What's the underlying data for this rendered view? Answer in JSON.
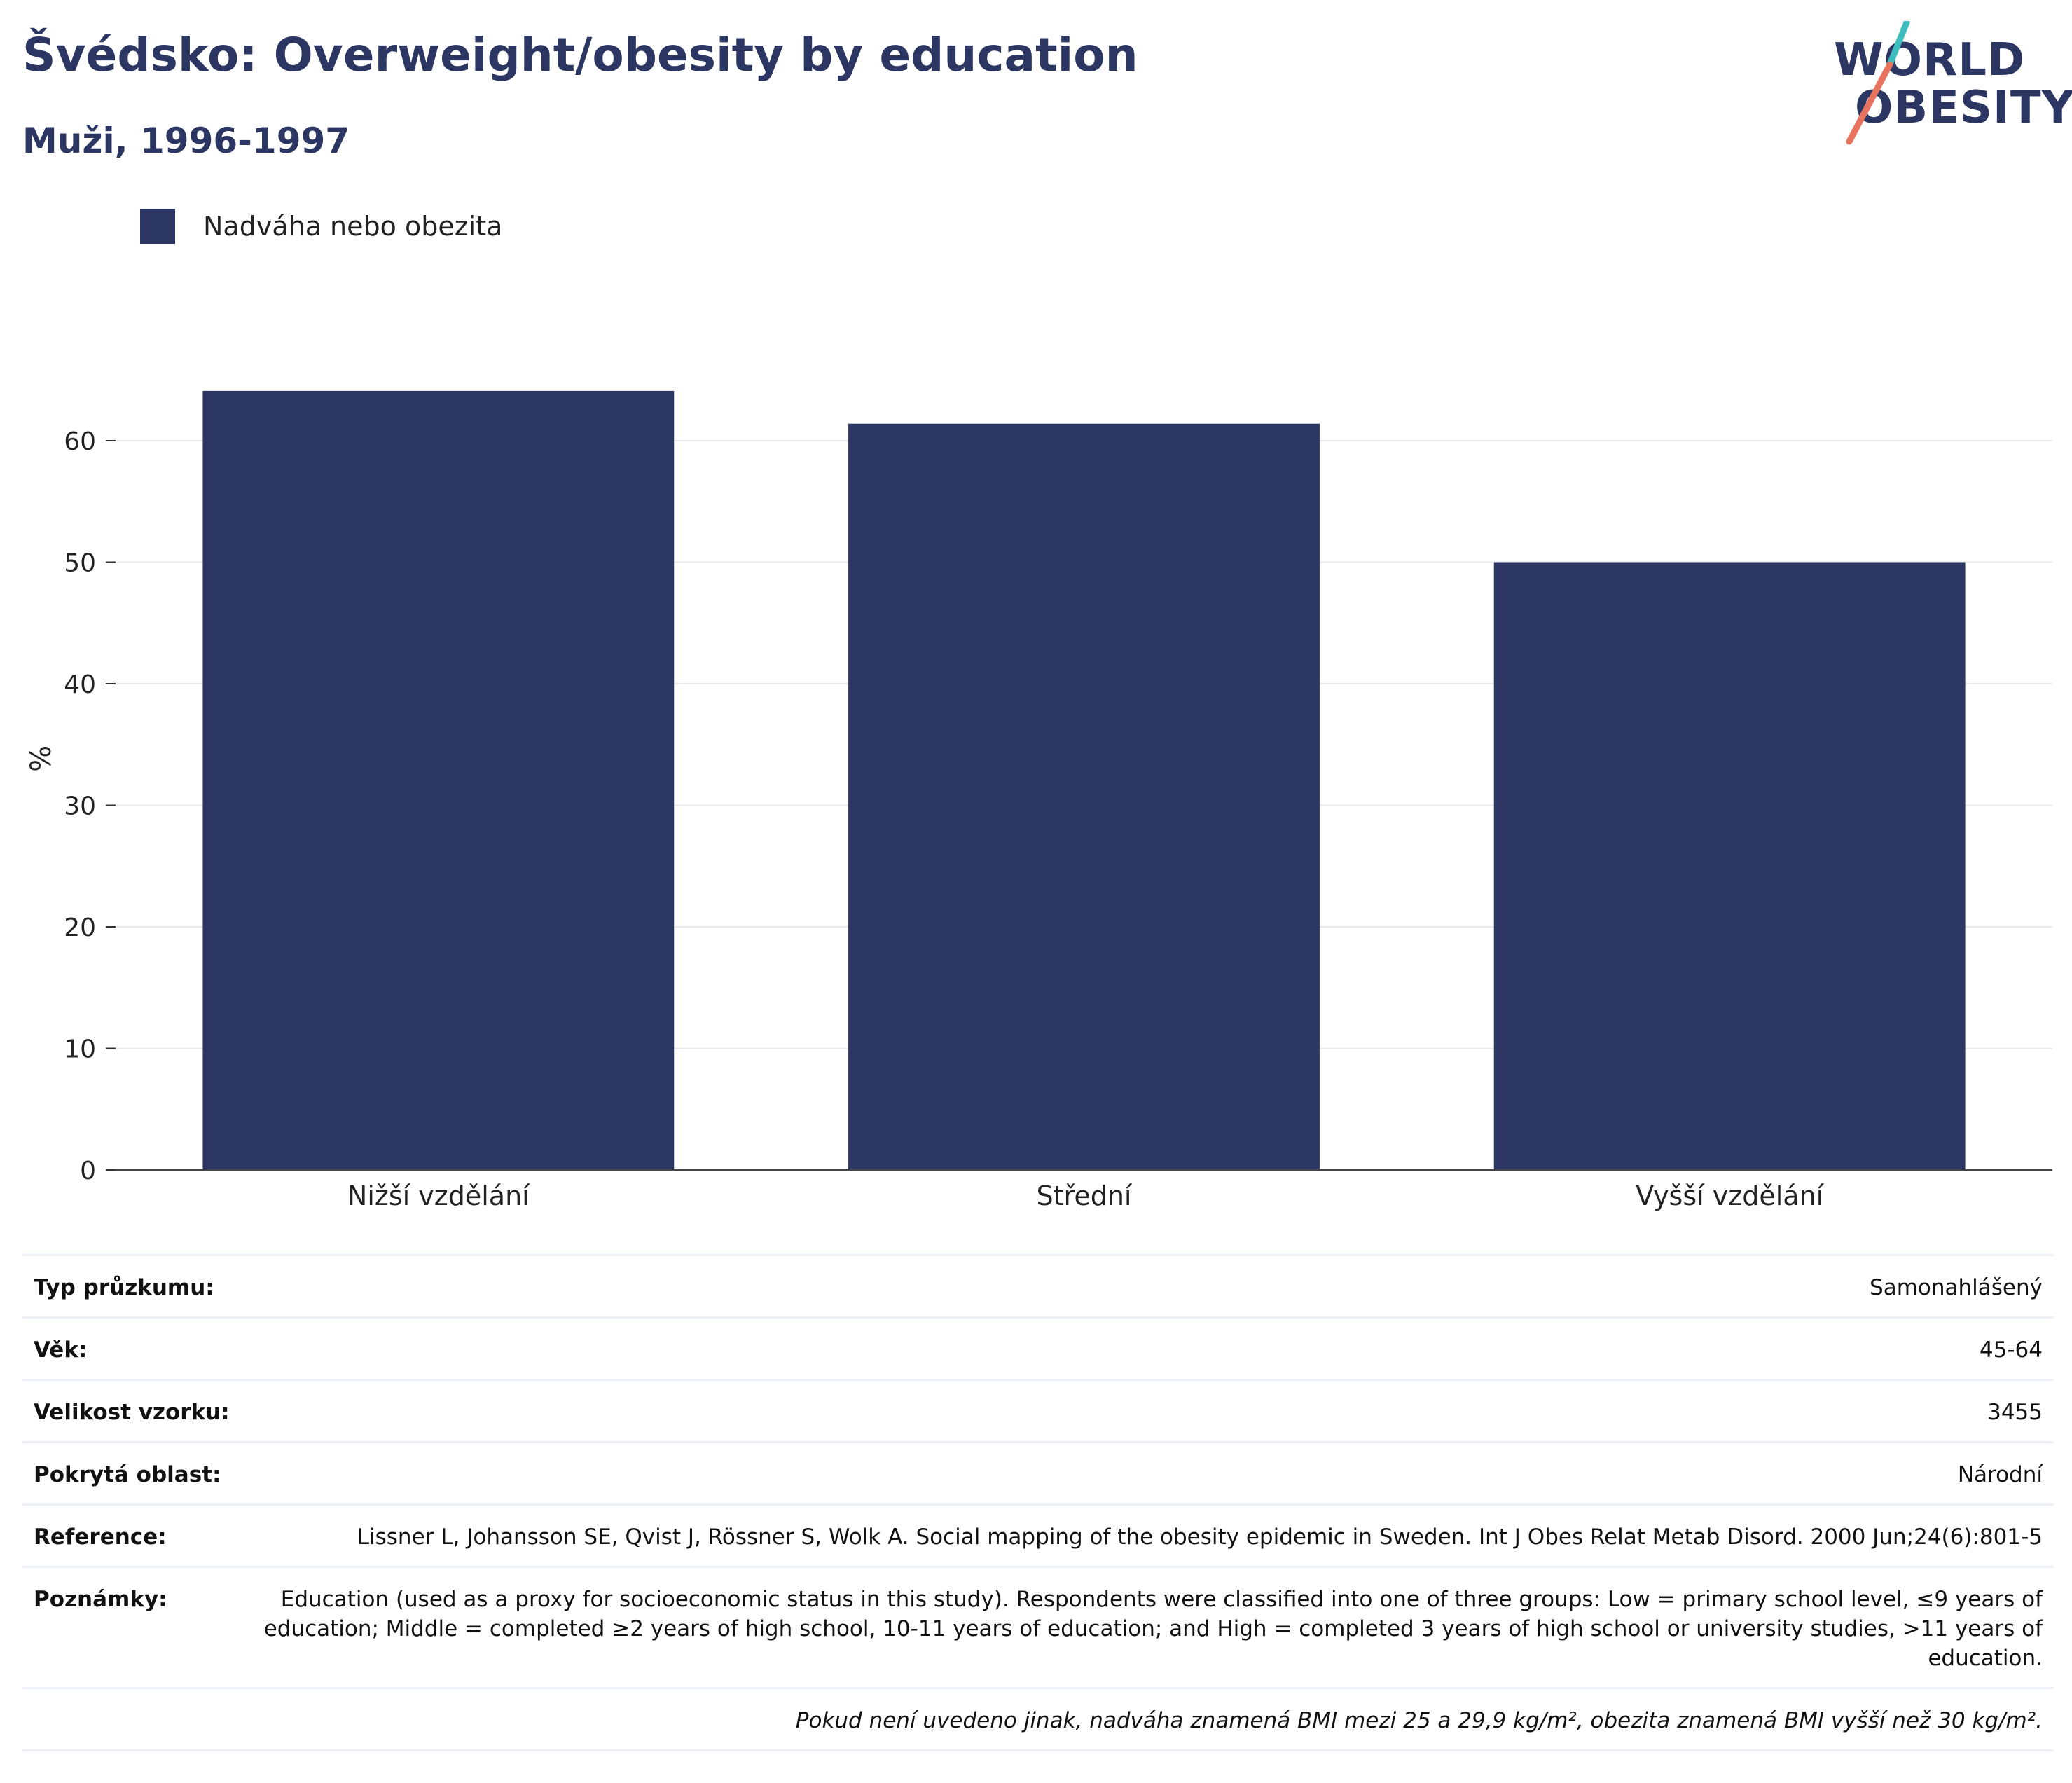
{
  "header": {
    "title": "Švédsko: Overweight/obesity by education",
    "subtitle": "Muži, 1996-1997"
  },
  "logo": {
    "line1": "WORLD",
    "line2": "OBESITY",
    "colors": {
      "text": "#2b3663",
      "slash_top": "#3dbdbd",
      "slash_bottom": "#e8735e"
    }
  },
  "legend": {
    "label": "Nadváha nebo obezita",
    "color": "#2b3663"
  },
  "chart_data": {
    "type": "bar",
    "categories": [
      "Nižší vzdělání",
      "Střední",
      "Vyšší vzdělání"
    ],
    "series": [
      {
        "name": "Nadváha nebo obezita",
        "values": [
          64.1,
          61.4,
          50.0
        ],
        "color": "#2b3663"
      }
    ],
    "ylabel": "%",
    "ylim": [
      0,
      70
    ],
    "yticks": [
      0,
      10,
      20,
      30,
      40,
      50,
      60
    ],
    "grid": true,
    "legend_position": "top-left"
  },
  "info": {
    "rows": [
      {
        "label": "Typ průzkumu:",
        "value": "Samonahlášený"
      },
      {
        "label": "Věk:",
        "value": "45-64"
      },
      {
        "label": "Velikost vzorku:",
        "value": "3455"
      },
      {
        "label": "Pokrytá oblast:",
        "value": "Národní"
      },
      {
        "label": "Reference:",
        "value": "Lissner L, Johansson SE, Qvist J, Rössner S, Wolk A. Social mapping of the obesity epidemic in Sweden. Int J Obes Relat Metab Disord. 2000 Jun;24(6):801-5"
      },
      {
        "label": "Poznámky:",
        "value": "Education (used as a proxy for socioeconomic status in this study). Respondents were classified into one of three groups: Low = primary school level, ≤9 years of education; Middle = completed ≥2 years of high school, 10-11 years of education; and High = completed 3 years of high school or university studies, >11 years of education."
      }
    ],
    "footnote": "Pokud není uvedeno jinak, nadváha znamená BMI mezi 25 a 29,9 kg/m², obezita znamená BMI vyšší než 30 kg/m²."
  }
}
